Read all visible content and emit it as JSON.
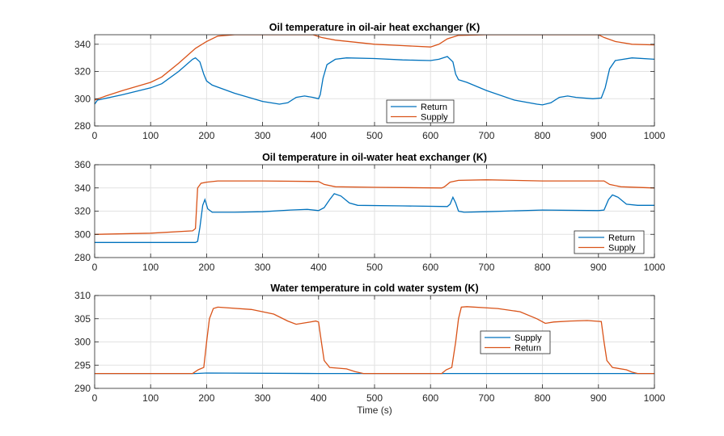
{
  "figure": {
    "xlabel": "Time (s)"
  },
  "colors": {
    "blue": "#0072BD",
    "orange": "#D95319",
    "grid": "#e2e2e2",
    "axis": "#262626"
  },
  "chart_data": [
    {
      "type": "line",
      "title": "Oil temperature in oil-air heat exchanger (K)",
      "xlim": [
        0,
        1000
      ],
      "ylim": [
        280,
        347
      ],
      "xticks": [
        "0",
        "100",
        "200",
        "300",
        "400",
        "500",
        "600",
        "700",
        "800",
        "900",
        "1000"
      ],
      "yticks": [
        "280",
        "300",
        "320",
        "340"
      ],
      "ytick_values": [
        280,
        300,
        320,
        340
      ],
      "grid": true,
      "legend_position": "lower-middle",
      "series": [
        {
          "name": "Return",
          "color": "blue",
          "points": [
            [
              0,
              296
            ],
            [
              5,
              299
            ],
            [
              50,
              303
            ],
            [
              100,
              308
            ],
            [
              120,
              311
            ],
            [
              150,
              320
            ],
            [
              175,
              329
            ],
            [
              180,
              330
            ],
            [
              188,
              327
            ],
            [
              195,
              318
            ],
            [
              200,
              313
            ],
            [
              210,
              310
            ],
            [
              250,
              304
            ],
            [
              300,
              298
            ],
            [
              330,
              296
            ],
            [
              345,
              297
            ],
            [
              360,
              301
            ],
            [
              375,
              302
            ],
            [
              390,
              301
            ],
            [
              400,
              300
            ],
            [
              403,
              303
            ],
            [
              408,
              315
            ],
            [
              415,
              325
            ],
            [
              430,
              329
            ],
            [
              450,
              330
            ],
            [
              500,
              329.5
            ],
            [
              550,
              328.5
            ],
            [
              600,
              328
            ],
            [
              615,
              329
            ],
            [
              630,
              331
            ],
            [
              640,
              327
            ],
            [
              645,
              318
            ],
            [
              650,
              314
            ],
            [
              665,
              312
            ],
            [
              700,
              306
            ],
            [
              750,
              299
            ],
            [
              790,
              296
            ],
            [
              800,
              295.5
            ],
            [
              815,
              297
            ],
            [
              830,
              301
            ],
            [
              845,
              302
            ],
            [
              860,
              301
            ],
            [
              890,
              300
            ],
            [
              905,
              300.5
            ],
            [
              912,
              308
            ],
            [
              920,
              322
            ],
            [
              930,
              328
            ],
            [
              960,
              330
            ],
            [
              1000,
              329
            ]
          ]
        },
        {
          "name": "Supply",
          "color": "orange",
          "points": [
            [
              0,
              299
            ],
            [
              20,
              302
            ],
            [
              50,
              306
            ],
            [
              100,
              312
            ],
            [
              120,
              316
            ],
            [
              150,
              326
            ],
            [
              180,
              337
            ],
            [
              200,
              342
            ],
            [
              220,
              346
            ],
            [
              250,
              347
            ],
            [
              350,
              347
            ],
            [
              390,
              347
            ],
            [
              405,
              345
            ],
            [
              430,
              343
            ],
            [
              500,
              340
            ],
            [
              550,
              339
            ],
            [
              600,
              338
            ],
            [
              615,
              340
            ],
            [
              630,
              344
            ],
            [
              650,
              346.5
            ],
            [
              700,
              347
            ],
            [
              800,
              347
            ],
            [
              900,
              347
            ],
            [
              910,
              345
            ],
            [
              930,
              342
            ],
            [
              960,
              340
            ],
            [
              1000,
              339.5
            ]
          ]
        }
      ]
    },
    {
      "type": "line",
      "title": "Oil temperature in oil-water heat exchanger (K)",
      "xlim": [
        0,
        1000
      ],
      "ylim": [
        280,
        360
      ],
      "xticks": [
        "0",
        "100",
        "200",
        "300",
        "400",
        "500",
        "600",
        "700",
        "800",
        "900",
        "1000"
      ],
      "yticks": [
        "280",
        "300",
        "320",
        "340",
        "360"
      ],
      "ytick_values": [
        280,
        300,
        320,
        340,
        360
      ],
      "grid": true,
      "legend_position": "lower-right",
      "series": [
        {
          "name": "Return",
          "color": "blue",
          "points": [
            [
              0,
              293
            ],
            [
              180,
              293
            ],
            [
              184,
              294
            ],
            [
              188,
              306
            ],
            [
              193,
              325
            ],
            [
              197,
              330
            ],
            [
              202,
              322
            ],
            [
              210,
              319
            ],
            [
              250,
              319
            ],
            [
              300,
              319.5
            ],
            [
              350,
              321
            ],
            [
              380,
              321.5
            ],
            [
              400,
              320.5
            ],
            [
              410,
              323
            ],
            [
              420,
              330
            ],
            [
              428,
              335
            ],
            [
              440,
              333
            ],
            [
              455,
              327
            ],
            [
              470,
              325
            ],
            [
              550,
              324.5
            ],
            [
              630,
              324
            ],
            [
              635,
              326
            ],
            [
              640,
              332
            ],
            [
              645,
              327
            ],
            [
              650,
              320
            ],
            [
              660,
              319
            ],
            [
              700,
              319.5
            ],
            [
              800,
              321
            ],
            [
              900,
              320.5
            ],
            [
              910,
              321
            ],
            [
              918,
              330
            ],
            [
              925,
              334
            ],
            [
              935,
              332
            ],
            [
              950,
              326
            ],
            [
              970,
              325
            ],
            [
              1000,
              325
            ]
          ]
        },
        {
          "name": "Supply",
          "color": "orange",
          "points": [
            [
              0,
              300
            ],
            [
              100,
              301
            ],
            [
              175,
              303
            ],
            [
              180,
              305
            ],
            [
              184,
              340
            ],
            [
              190,
              344
            ],
            [
              200,
              345
            ],
            [
              220,
              346
            ],
            [
              300,
              346
            ],
            [
              400,
              345.5
            ],
            [
              410,
              343
            ],
            [
              430,
              341
            ],
            [
              500,
              340.5
            ],
            [
              620,
              340
            ],
            [
              625,
              341
            ],
            [
              635,
              345
            ],
            [
              650,
              346.5
            ],
            [
              700,
              347
            ],
            [
              800,
              346
            ],
            [
              910,
              346
            ],
            [
              920,
              343
            ],
            [
              940,
              341
            ],
            [
              1000,
              340
            ]
          ]
        }
      ]
    },
    {
      "type": "line",
      "title": "Water temperature in cold water system (K)",
      "xlim": [
        0,
        1000
      ],
      "ylim": [
        290,
        310
      ],
      "xticks": [
        "0",
        "100",
        "200",
        "300",
        "400",
        "500",
        "600",
        "700",
        "800",
        "900",
        "1000"
      ],
      "yticks": [
        "290",
        "295",
        "300",
        "305",
        "310"
      ],
      "ytick_values": [
        290,
        295,
        300,
        305,
        310
      ],
      "grid": true,
      "legend_position": "middle",
      "series": [
        {
          "name": "Supply",
          "color": "blue",
          "points": [
            [
              0,
              293.2
            ],
            [
              180,
              293.2
            ],
            [
              200,
              293.3
            ],
            [
              400,
              293.2
            ],
            [
              1000,
              293.2
            ]
          ]
        },
        {
          "name": "Return",
          "color": "orange",
          "points": [
            [
              0,
              293.2
            ],
            [
              175,
              293.2
            ],
            [
              185,
              294
            ],
            [
              195,
              294.5
            ],
            [
              200,
              300
            ],
            [
              205,
              305
            ],
            [
              212,
              307.2
            ],
            [
              220,
              307.5
            ],
            [
              280,
              307
            ],
            [
              320,
              306
            ],
            [
              345,
              304.5
            ],
            [
              360,
              303.8
            ],
            [
              380,
              304.2
            ],
            [
              395,
              304.5
            ],
            [
              400,
              304.3
            ],
            [
              405,
              300
            ],
            [
              410,
              296
            ],
            [
              420,
              294.5
            ],
            [
              450,
              294.2
            ],
            [
              465,
              293.6
            ],
            [
              480,
              293.2
            ],
            [
              620,
              293.2
            ],
            [
              628,
              294
            ],
            [
              638,
              294.5
            ],
            [
              645,
              300
            ],
            [
              650,
              305
            ],
            [
              655,
              307.5
            ],
            [
              665,
              307.6
            ],
            [
              720,
              307.2
            ],
            [
              760,
              306.5
            ],
            [
              790,
              305
            ],
            [
              805,
              304
            ],
            [
              820,
              304.3
            ],
            [
              850,
              304.5
            ],
            [
              880,
              304.6
            ],
            [
              905,
              304.4
            ],
            [
              910,
              300
            ],
            [
              915,
              296
            ],
            [
              925,
              294.5
            ],
            [
              950,
              294
            ],
            [
              960,
              293.5
            ],
            [
              970,
              293.2
            ],
            [
              1000,
              293.2
            ]
          ]
        }
      ]
    }
  ]
}
